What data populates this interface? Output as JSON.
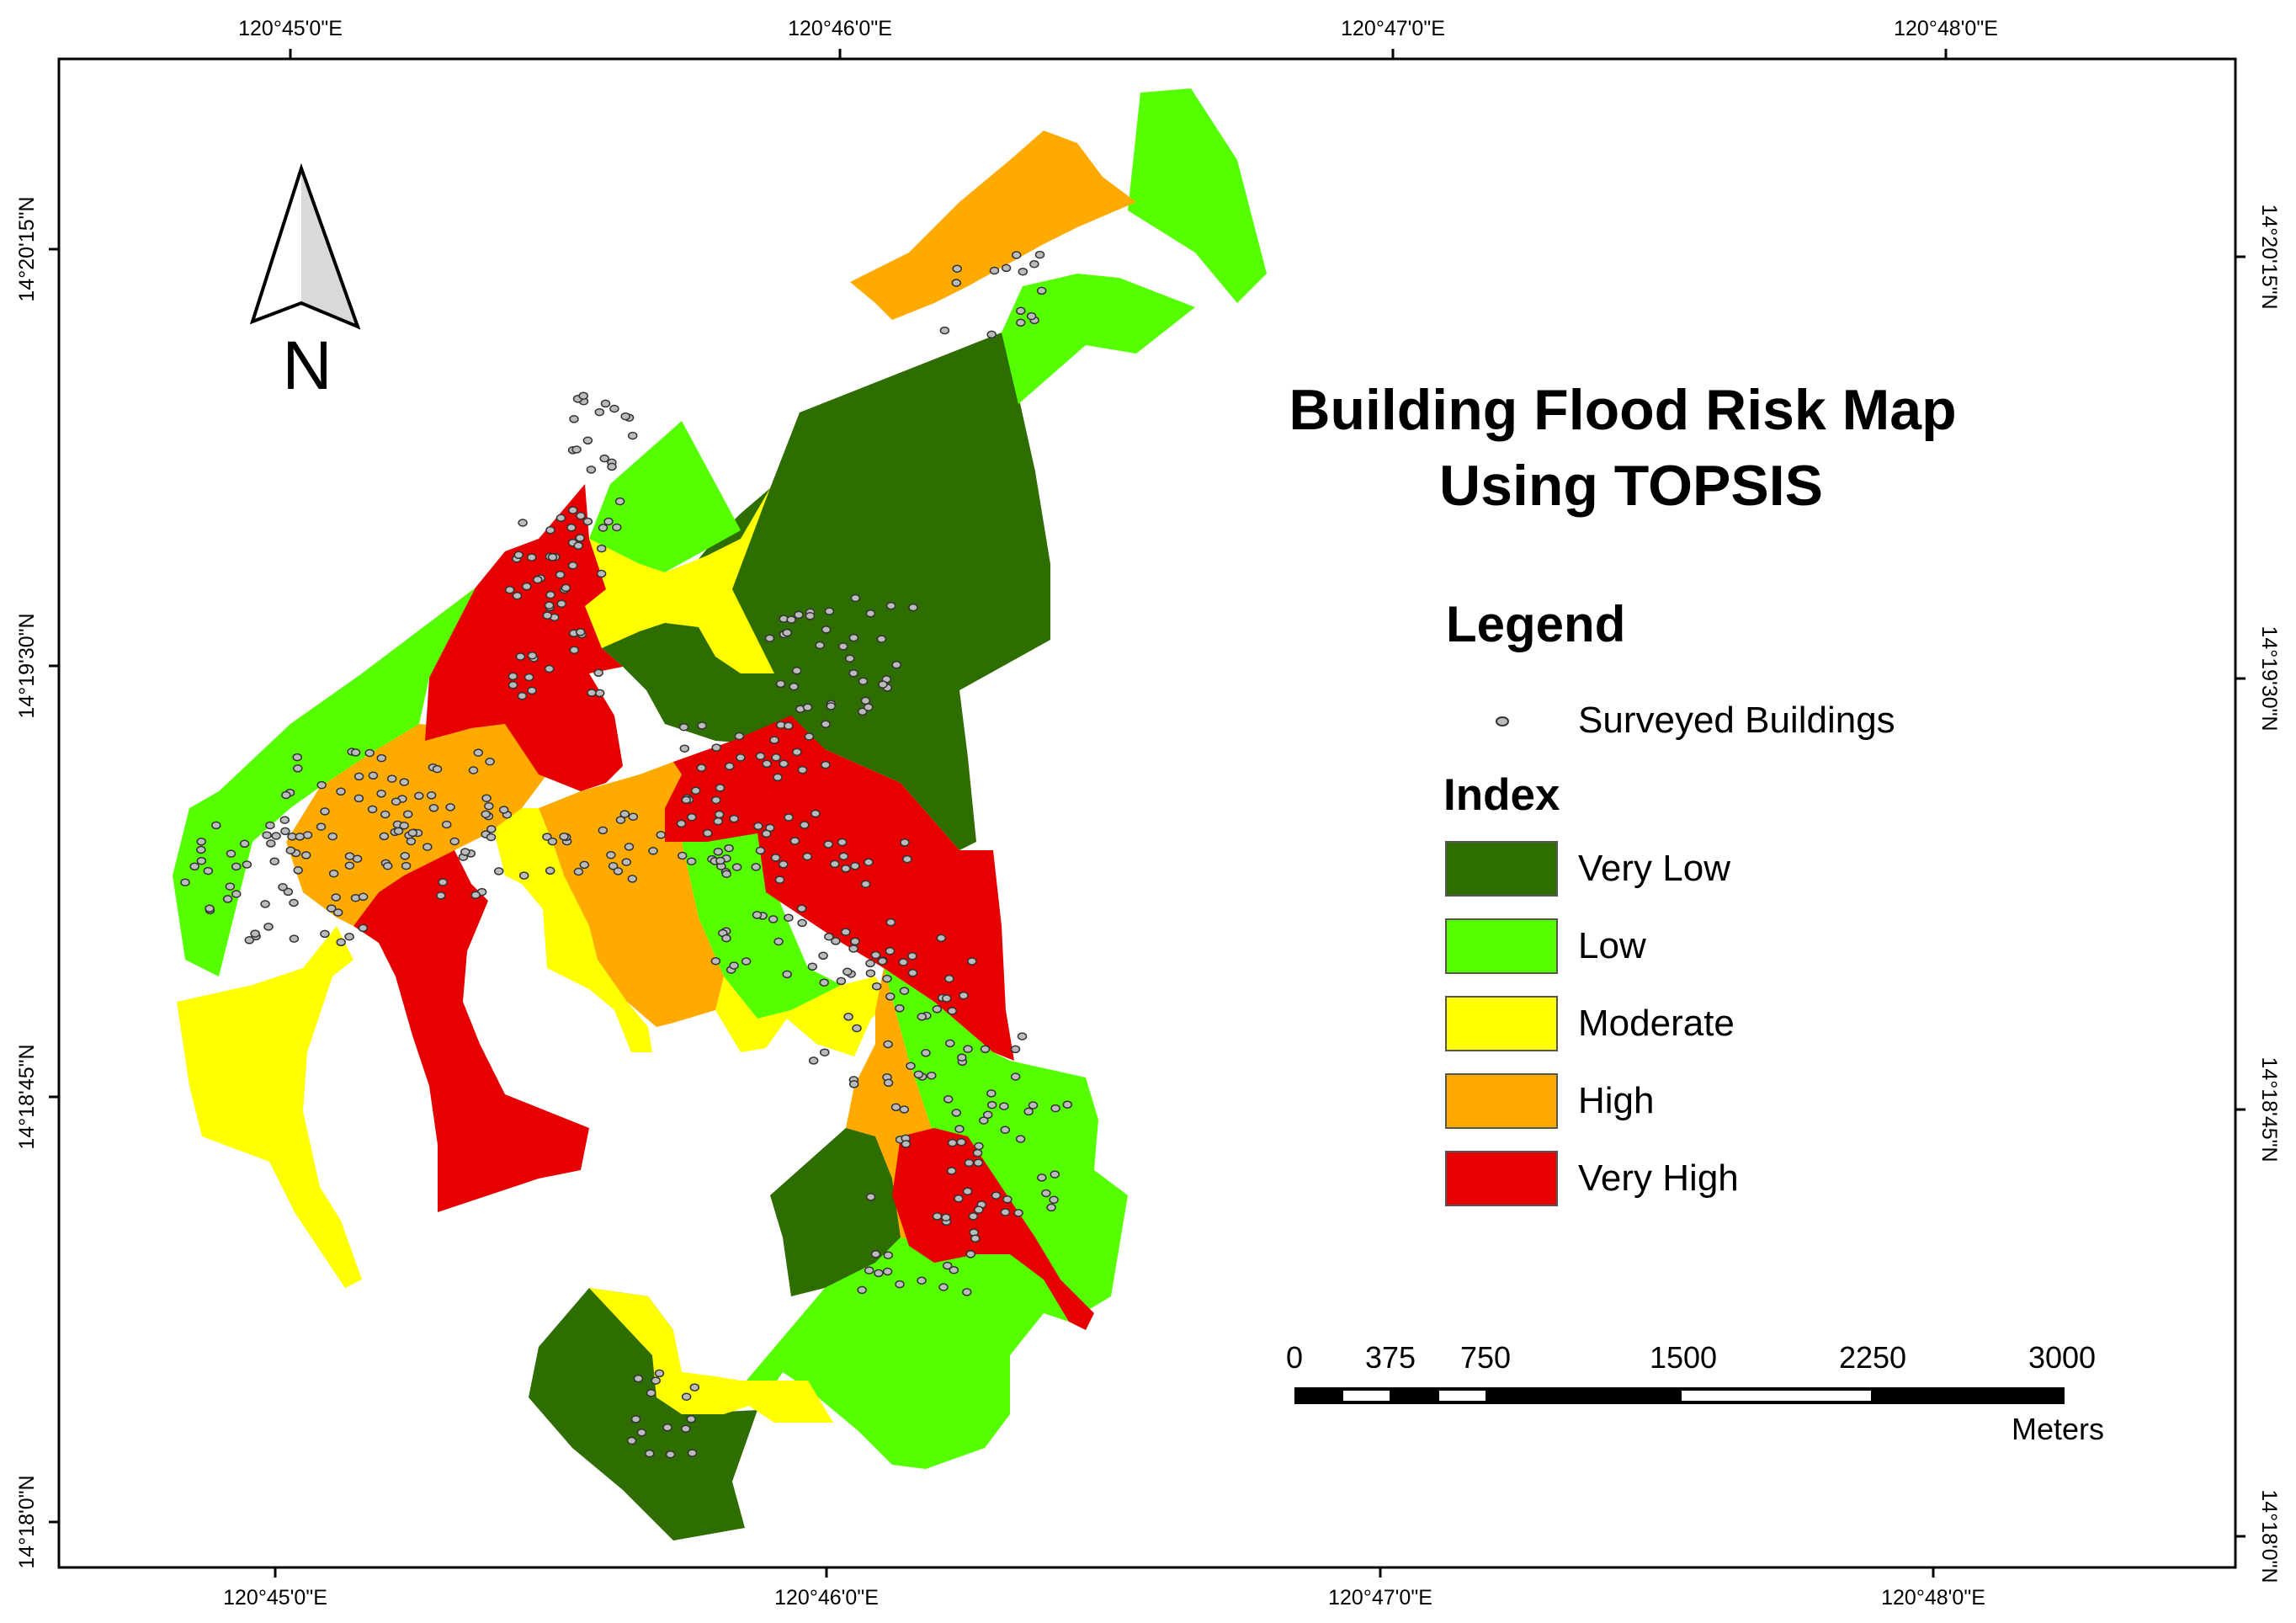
{
  "map": {
    "title_line1": "Building Flood Risk Map",
    "title_line2": "Using TOPSIS",
    "north_label": "N",
    "north_arrow_icon": "north-arrow-icon",
    "longitude_labels": [
      "120°45'0\"E",
      "120°46'0\"E",
      "120°47'0\"E",
      "120°48'0\"E"
    ],
    "latitude_labels": [
      "14°20'15\"N",
      "14°19'30\"N",
      "14°18'45\"N",
      "14°18'0\"N"
    ],
    "legend": {
      "heading": "Legend",
      "point_item_label": "Surveyed Buildings",
      "point_icon": "building-point-icon",
      "index_heading": "Index",
      "classes": [
        {
          "label": "Very Low",
          "color": "#2E6E00"
        },
        {
          "label": "Low",
          "color": "#55FF00"
        },
        {
          "label": "Moderate",
          "color": "#FFFF00"
        },
        {
          "label": "High",
          "color": "#FFAA00"
        },
        {
          "label": "Very High",
          "color": "#E60000"
        }
      ]
    },
    "scale_bar": {
      "labels": [
        "0",
        "375",
        "750",
        "1500",
        "2250",
        "3000"
      ],
      "unit": "Meters"
    }
  }
}
